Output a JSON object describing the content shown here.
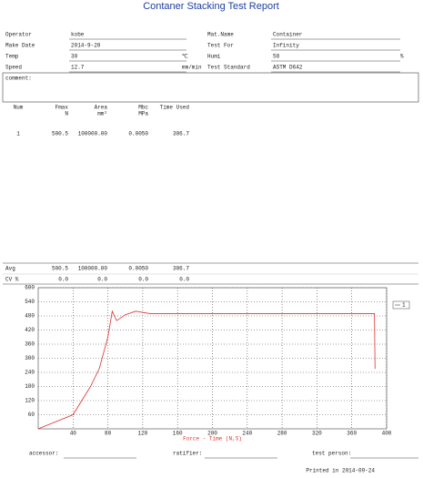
{
  "header": {
    "title": "Contaner Stacking Test Report"
  },
  "info": {
    "rows": [
      {
        "left": {
          "label": "Operator",
          "value": "kobe"
        },
        "right": {
          "label": "Mat.Name",
          "value": "Container"
        }
      },
      {
        "left": {
          "label": "Make Date",
          "value": "2014-9-20"
        },
        "right": {
          "label": "Test For",
          "value": "Infinity"
        }
      },
      {
        "left": {
          "label": "Temp",
          "value": "30",
          "unit": "℃"
        },
        "right": {
          "label": "Humi",
          "value": "58",
          "unit": "%"
        }
      },
      {
        "left": {
          "label": "Speed",
          "value": "12.7",
          "unit": "mm/min"
        },
        "right": {
          "label": "Test Standard",
          "value": "ASTM D642"
        }
      }
    ]
  },
  "comment": {
    "label": "comment:"
  },
  "table": {
    "columns": [
      {
        "name": "Num"
      },
      {
        "name": "Fmax",
        "unit": "N"
      },
      {
        "name": "Area",
        "unit": "mm²"
      },
      {
        "name": "Mbc",
        "unit": "MPa"
      },
      {
        "name": "Time Used"
      }
    ],
    "rows": [
      [
        "1",
        "500.5",
        "100000.00",
        "0.0050",
        "386.7"
      ]
    ]
  },
  "summary": {
    "rows": [
      [
        "Avg",
        "500.5",
        "100000.00",
        "0.0050",
        "386.7"
      ],
      [
        "CV %",
        "0.0",
        "0.0",
        "0.0",
        "0.0"
      ]
    ]
  },
  "chart": {
    "type": "line",
    "x_label": "Force - Time  (N,S)",
    "series": [
      {
        "name": "1",
        "color": "#e03030",
        "x": [
          0,
          20,
          40,
          60,
          70,
          80,
          85,
          90,
          100,
          112,
          128,
          386,
          386.7
        ],
        "values": [
          0,
          30,
          60,
          180,
          255,
          390,
          500,
          460,
          485,
          500,
          490,
          490,
          255
        ]
      }
    ],
    "xlim": [
      0,
      400
    ],
    "ylim": [
      0,
      600
    ],
    "xticks": [
      40,
      80,
      120,
      160,
      200,
      240,
      280,
      320,
      360,
      400
    ],
    "yticks": [
      60,
      120,
      180,
      240,
      300,
      360,
      420,
      480,
      540,
      600
    ],
    "grid": true
  },
  "footer": {
    "signatures": [
      "accessor:",
      "ratifier:",
      "test person:"
    ],
    "printed": "Printed in 2014-09-24"
  }
}
